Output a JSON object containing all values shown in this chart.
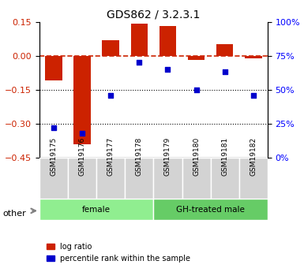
{
  "title": "GDS862 / 3.2.3.1",
  "samples": [
    "GSM19175",
    "GSM19176",
    "GSM19177",
    "GSM19178",
    "GSM19179",
    "GSM19180",
    "GSM19181",
    "GSM19182"
  ],
  "log_ratio": [
    -0.11,
    -0.39,
    0.07,
    0.14,
    0.13,
    -0.02,
    0.05,
    -0.01
  ],
  "percentile_rank": [
    22,
    18,
    46,
    70,
    65,
    50,
    63,
    46
  ],
  "groups": [
    {
      "label": "female",
      "start": 0,
      "end": 4,
      "color": "#90EE90"
    },
    {
      "label": "GH-treated male",
      "start": 4,
      "end": 8,
      "color": "#66CC66"
    }
  ],
  "ylim_left": [
    -0.45,
    0.15
  ],
  "ylim_right": [
    0,
    100
  ],
  "yticks_left": [
    0.15,
    0,
    -0.15,
    -0.3,
    -0.45
  ],
  "yticks_right": [
    100,
    75,
    50,
    25,
    0
  ],
  "bar_color": "#CC2200",
  "scatter_color": "#0000CC",
  "zero_line_color": "#CC2200",
  "dotted_line_color": "#000000",
  "legend_labels": [
    "log ratio",
    "percentile rank within the sample"
  ],
  "other_label": "other",
  "bar_width": 0.6
}
